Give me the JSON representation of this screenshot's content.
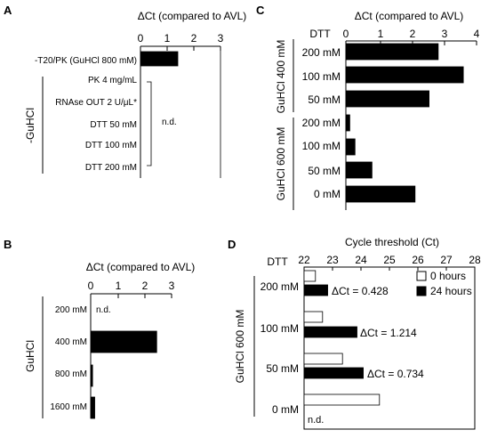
{
  "panels": {
    "A": {
      "letter": "A",
      "title": "ΔCt (compared to AVL)",
      "ticks": [
        "0",
        "1",
        "2",
        "3"
      ],
      "categories": [
        "-T20/PK (GuHCl 800 mM)",
        "PK 4 mg/mL",
        "RNAse OUT 2 U/μL*",
        "DTT 50 mM",
        "DTT 100 mM",
        "DTT 200 mM"
      ],
      "group_label": "-GuHCl",
      "nd_label": "n.d."
    },
    "B": {
      "letter": "B",
      "title": "ΔCt (compared to AVL)",
      "ticks": [
        "0",
        "1",
        "2",
        "3"
      ],
      "categories": [
        "200 mM",
        "400 mM",
        "800 mM",
        "1600 mM"
      ],
      "group_label": "GuHCl",
      "nd_label": "n.d."
    },
    "C": {
      "letter": "C",
      "title": "ΔCt (compared to AVL)",
      "corner_label": "DTT",
      "ticks": [
        "0",
        "1",
        "2",
        "3",
        "4"
      ],
      "categories": [
        "200 mM",
        "100 mM",
        "50 mM",
        "200 mM",
        "100 mM",
        "50 mM",
        "0 mM"
      ],
      "group_labels": [
        "GuHCl 400 mM",
        "GuHCl 600 mM"
      ]
    },
    "D": {
      "letter": "D",
      "title": "Cycle threshold (Ct)",
      "corner_label": "DTT",
      "ticks": [
        "22",
        "23",
        "24",
        "25",
        "26",
        "27",
        "28"
      ],
      "categories": [
        "200 mM",
        "100 mM",
        "50 mM",
        "0 mM"
      ],
      "group_label": "GuHCl 600 mM",
      "legend": [
        "0 hours",
        "24 hours"
      ],
      "annotations": [
        "ΔCt = 0.428",
        "ΔCt = 1.214",
        "ΔCt = 0.734"
      ],
      "nd_label": "n.d."
    }
  },
  "colors": {
    "bar_dark": "#000000",
    "bar_light": "#ffffff",
    "axis": "#000000"
  },
  "chart_data": [
    {
      "panel": "A",
      "type": "bar",
      "orientation": "horizontal",
      "title": "ΔCt (compared to AVL)",
      "categories": [
        "-T20/PK (GuHCl 800 mM)",
        "PK 4 mg/mL",
        "RNAse OUT 2 U/μL*",
        "DTT 50 mM",
        "DTT 100 mM",
        "DTT 200 mM"
      ],
      "values": [
        1.4,
        null,
        null,
        null,
        null,
        null
      ],
      "xlim": [
        0,
        3
      ]
    },
    {
      "panel": "B",
      "type": "bar",
      "orientation": "horizontal",
      "title": "ΔCt (compared to AVL)",
      "categories": [
        "200 mM",
        "400 mM",
        "800 mM",
        "1600 mM"
      ],
      "values": [
        null,
        2.45,
        0.07,
        0.15
      ],
      "xlim": [
        0,
        3
      ]
    },
    {
      "panel": "C",
      "type": "bar",
      "orientation": "horizontal",
      "title": "ΔCt (compared to AVL)",
      "categories": [
        "200 mM",
        "100 mM",
        "50 mM",
        "200 mM",
        "100 mM",
        "50 mM",
        "0 mM"
      ],
      "values": [
        2.83,
        3.6,
        2.55,
        0.12,
        0.28,
        0.8,
        2.12
      ],
      "xlim": [
        0,
        4
      ]
    },
    {
      "panel": "D",
      "type": "bar",
      "orientation": "horizontal",
      "title": "Cycle threshold (Ct)",
      "categories": [
        "200 mM",
        "100 mM",
        "50 mM",
        "0 mM"
      ],
      "series": [
        {
          "name": "0 hours",
          "values": [
            22.4,
            22.65,
            23.35,
            24.65
          ]
        },
        {
          "name": "24 hours",
          "values": [
            22.83,
            23.86,
            24.08,
            null
          ]
        }
      ],
      "xlim": [
        22,
        28
      ]
    }
  ]
}
